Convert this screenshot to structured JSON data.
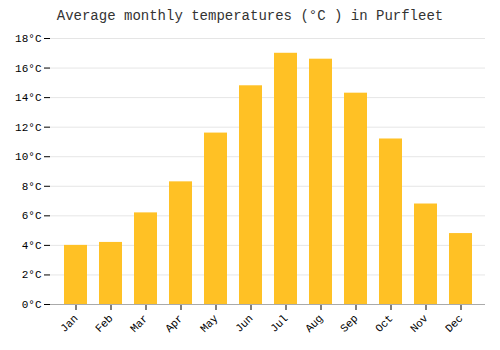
{
  "chart_data": {
    "type": "bar",
    "title": "Average monthly temperatures (°C ) in Purfleet",
    "categories": [
      "Jan",
      "Feb",
      "Mar",
      "Apr",
      "May",
      "Jun",
      "Jul",
      "Aug",
      "Sep",
      "Oct",
      "Nov",
      "Dec"
    ],
    "values": [
      4.0,
      4.2,
      6.2,
      8.3,
      11.6,
      14.8,
      17.0,
      16.6,
      14.3,
      11.2,
      6.8,
      4.8
    ],
    "color": "#FFC125",
    "ylim": [
      0,
      18
    ],
    "yticks": [
      {
        "value": 0,
        "label": "0°C"
      },
      {
        "value": 2,
        "label": "2°C"
      },
      {
        "value": 4,
        "label": "4°C"
      },
      {
        "value": 6,
        "label": "6°C"
      },
      {
        "value": 8,
        "label": "8°C"
      },
      {
        "value": 10,
        "label": "10°C"
      },
      {
        "value": 12,
        "label": "12°C"
      },
      {
        "value": 14,
        "label": "14°C"
      },
      {
        "value": 16,
        "label": "16°C"
      },
      {
        "value": 18,
        "label": "18°C"
      }
    ],
    "grid": true
  }
}
